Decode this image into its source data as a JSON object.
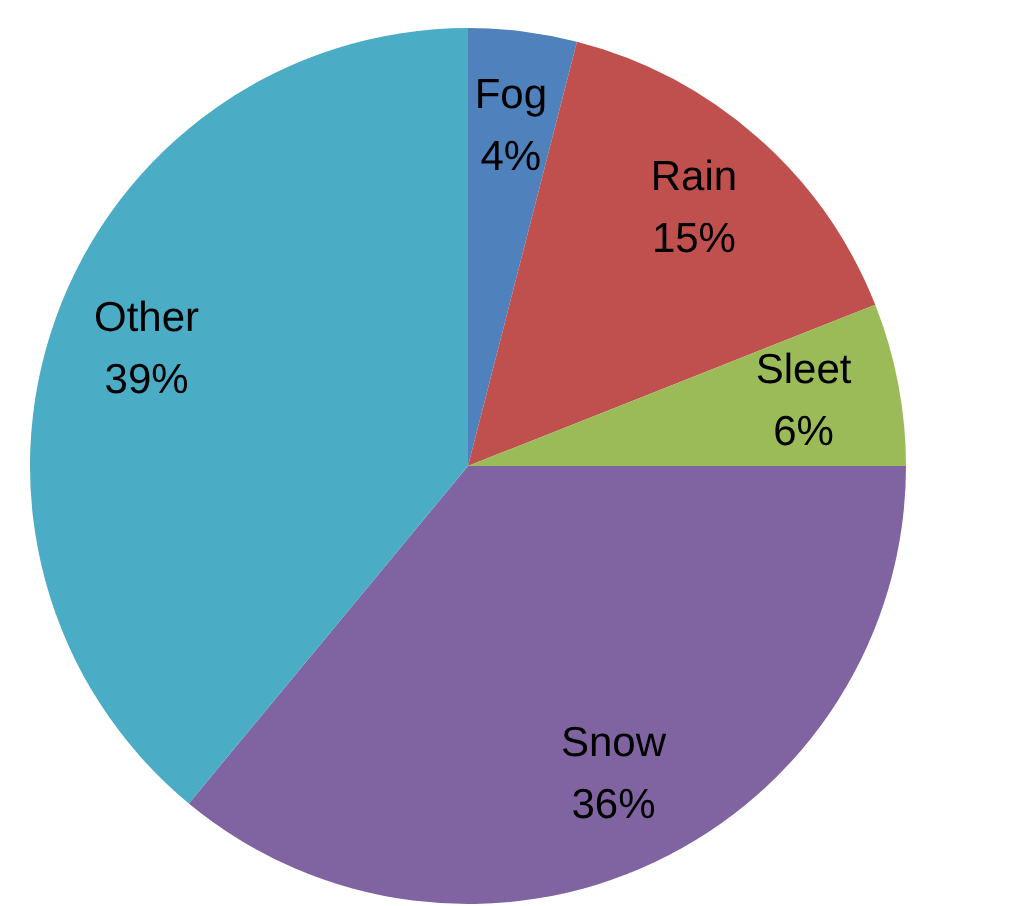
{
  "chart_data": {
    "type": "pie",
    "categories": [
      "Fog",
      "Rain",
      "Sleet",
      "Snow",
      "Other"
    ],
    "values": [
      4,
      15,
      6,
      36,
      39
    ],
    "colors": [
      "#4f81bd",
      "#c0504d",
      "#9bbb59",
      "#8064a2",
      "#4bacc6"
    ],
    "value_labels": [
      "4%",
      "15%",
      "6%",
      "36%",
      "39%"
    ]
  }
}
